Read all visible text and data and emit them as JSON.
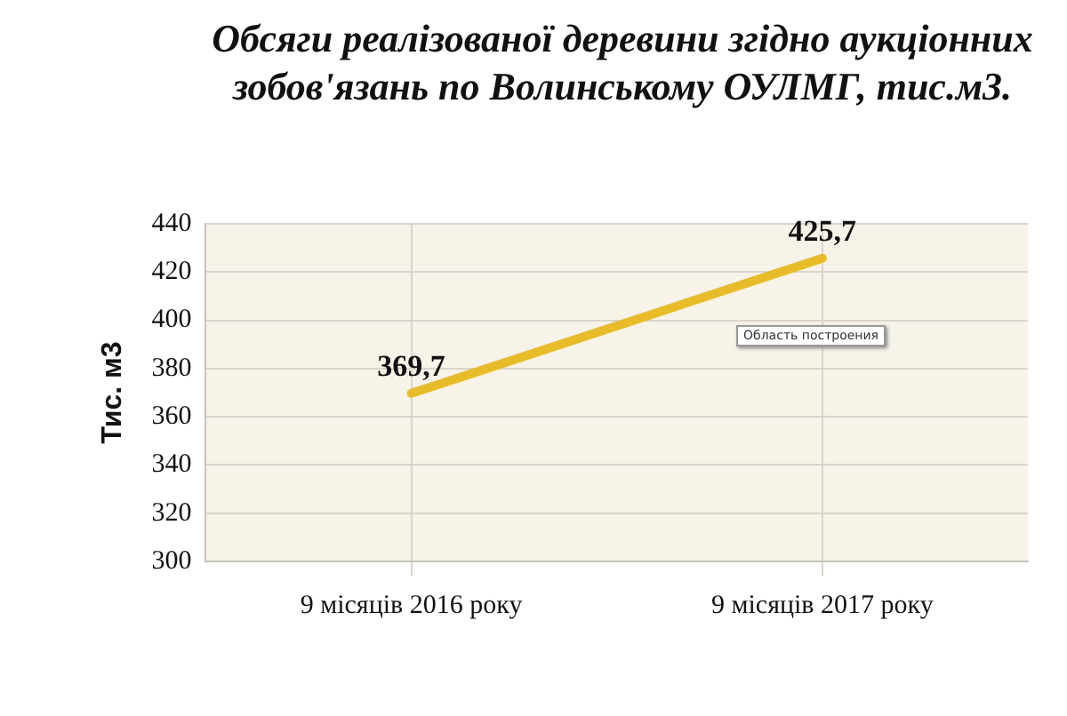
{
  "chart_data": {
    "type": "line",
    "title": "Обсяги реалізованої деревини згідно аукціонних зобов'язань по Волинському ОУЛМГ, тис.м3.",
    "ylabel": "Тис. м3",
    "categories": [
      "9 місяців 2016 року",
      "9 місяців 2017 року"
    ],
    "series": [
      {
        "color": "#e8bb2a",
        "values": [
          369.7,
          425.7
        ]
      }
    ],
    "value_labels": [
      "369,7",
      "425,7"
    ],
    "ylim": [
      300,
      440
    ],
    "yticks": [
      300,
      320,
      340,
      360,
      380,
      400,
      420,
      440
    ],
    "grid": true,
    "legend": false,
    "marker": "none",
    "annotations": [
      "Область построения"
    ]
  }
}
